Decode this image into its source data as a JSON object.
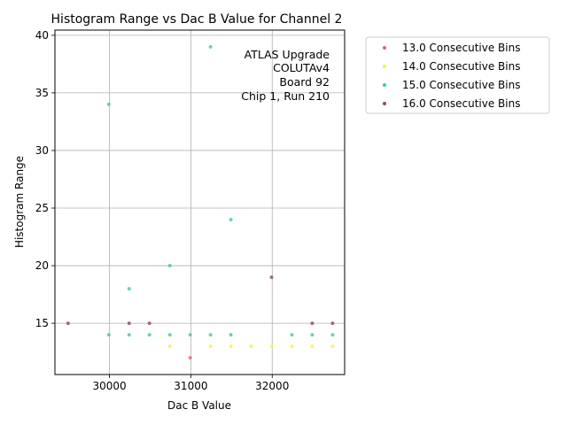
{
  "chart_data": {
    "type": "scatter",
    "title": "Histogram Range vs Dac B Value for Channel 2",
    "xlabel": "Dac B Value",
    "ylabel": "Histogram Range",
    "xlim": [
      29330,
      32890
    ],
    "ylim": [
      10.55,
      40.45
    ],
    "x_ticks": [
      30000,
      31000,
      32000
    ],
    "x_tick_labels": [
      "30000",
      "31000",
      "32000"
    ],
    "y_ticks": [
      15,
      20,
      25,
      30,
      35,
      40
    ],
    "y_tick_labels": [
      "15",
      "20",
      "25",
      "30",
      "35",
      "40"
    ],
    "grid": true,
    "legend_placement": "outside-top-right",
    "annotation": [
      "ATLAS Upgrade",
      "COLUTAv4",
      "Board 92",
      "Chip 1, Run 210"
    ],
    "series": [
      {
        "name": "13.0 Consecutive Bins",
        "color": "#e8606a",
        "points": [
          [
            30992,
            12
          ]
        ]
      },
      {
        "name": "14.0 Consecutive Bins",
        "color": "#f5f53c",
        "points": [
          [
            30742,
            13
          ],
          [
            31242,
            13
          ],
          [
            31492,
            13
          ],
          [
            31742,
            13
          ],
          [
            31992,
            13
          ],
          [
            32242,
            13
          ],
          [
            32492,
            13
          ],
          [
            32742,
            13
          ]
        ]
      },
      {
        "name": "15.0 Consecutive Bins",
        "color": "#40c9a2",
        "points": [
          [
            29992,
            34
          ],
          [
            29992,
            14
          ],
          [
            30242,
            18
          ],
          [
            30242,
            14
          ],
          [
            30492,
            14
          ],
          [
            30742,
            20
          ],
          [
            30742,
            14
          ],
          [
            30992,
            14
          ],
          [
            31242,
            39
          ],
          [
            31242,
            14
          ],
          [
            31492,
            24
          ],
          [
            31492,
            14
          ],
          [
            32242,
            14
          ],
          [
            32492,
            14
          ],
          [
            32742,
            14
          ]
        ]
      },
      {
        "name": "16.0 Consecutive Bins",
        "color": "#8c4a63",
        "points": [
          [
            29492,
            15
          ],
          [
            30242,
            15
          ],
          [
            30492,
            15
          ],
          [
            31992,
            19
          ],
          [
            32492,
            15
          ],
          [
            32742,
            15
          ]
        ]
      }
    ]
  }
}
